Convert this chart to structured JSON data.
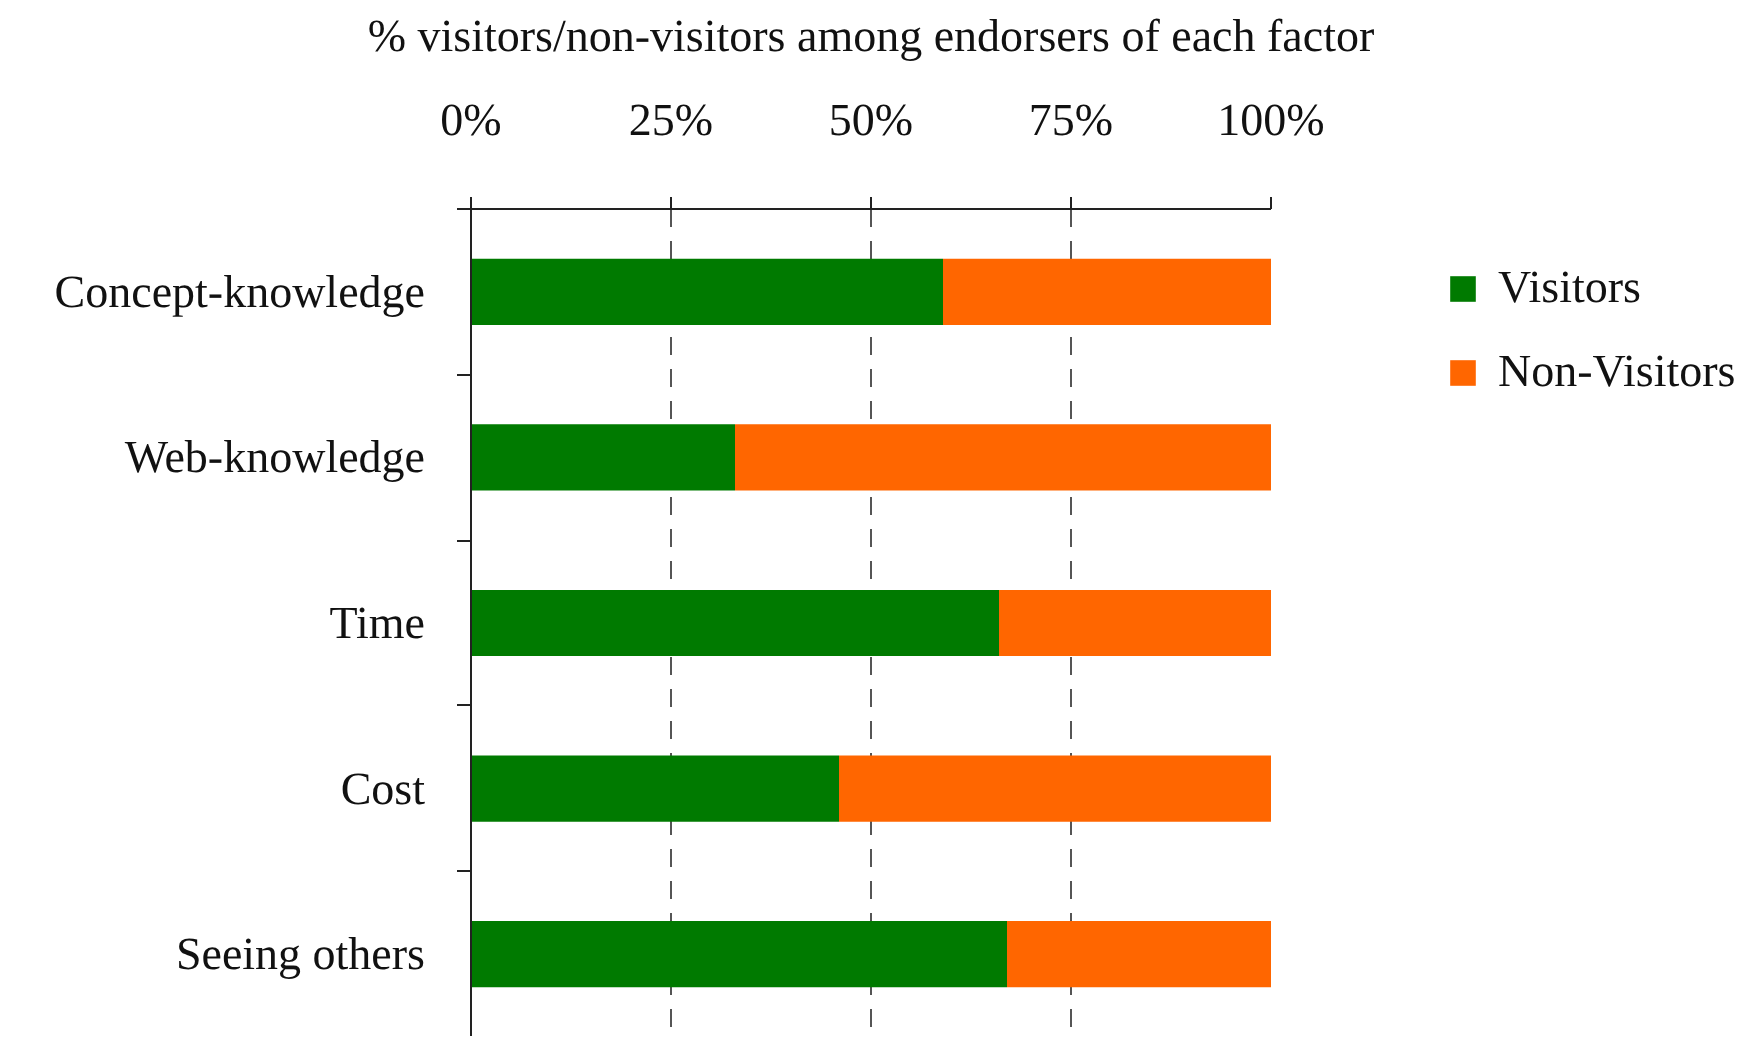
{
  "chart_data": {
    "type": "bar",
    "orientation": "horizontal",
    "stacked": true,
    "xlabel": "% visitors/non-visitors among endorsers of each factor",
    "categories": [
      "Concept-knowledge",
      "Web-knowledge",
      "Time",
      "Cost",
      "Seeing others"
    ],
    "series": [
      {
        "name": "Visitors",
        "color": "#007a00",
        "values": [
          59,
          33,
          66,
          46,
          67
        ]
      },
      {
        "name": "Non-Visitors",
        "color": "#ff6600",
        "values": [
          41,
          67,
          34,
          54,
          33
        ]
      }
    ],
    "xlim": [
      0,
      100
    ],
    "xticks": [
      {
        "value": 0,
        "label": "0%"
      },
      {
        "value": 25,
        "label": "25%"
      },
      {
        "value": 50,
        "label": "50%"
      },
      {
        "value": 75,
        "label": "75%"
      },
      {
        "value": 100,
        "label": "100%"
      }
    ],
    "grid": "x",
    "legend": "right"
  }
}
